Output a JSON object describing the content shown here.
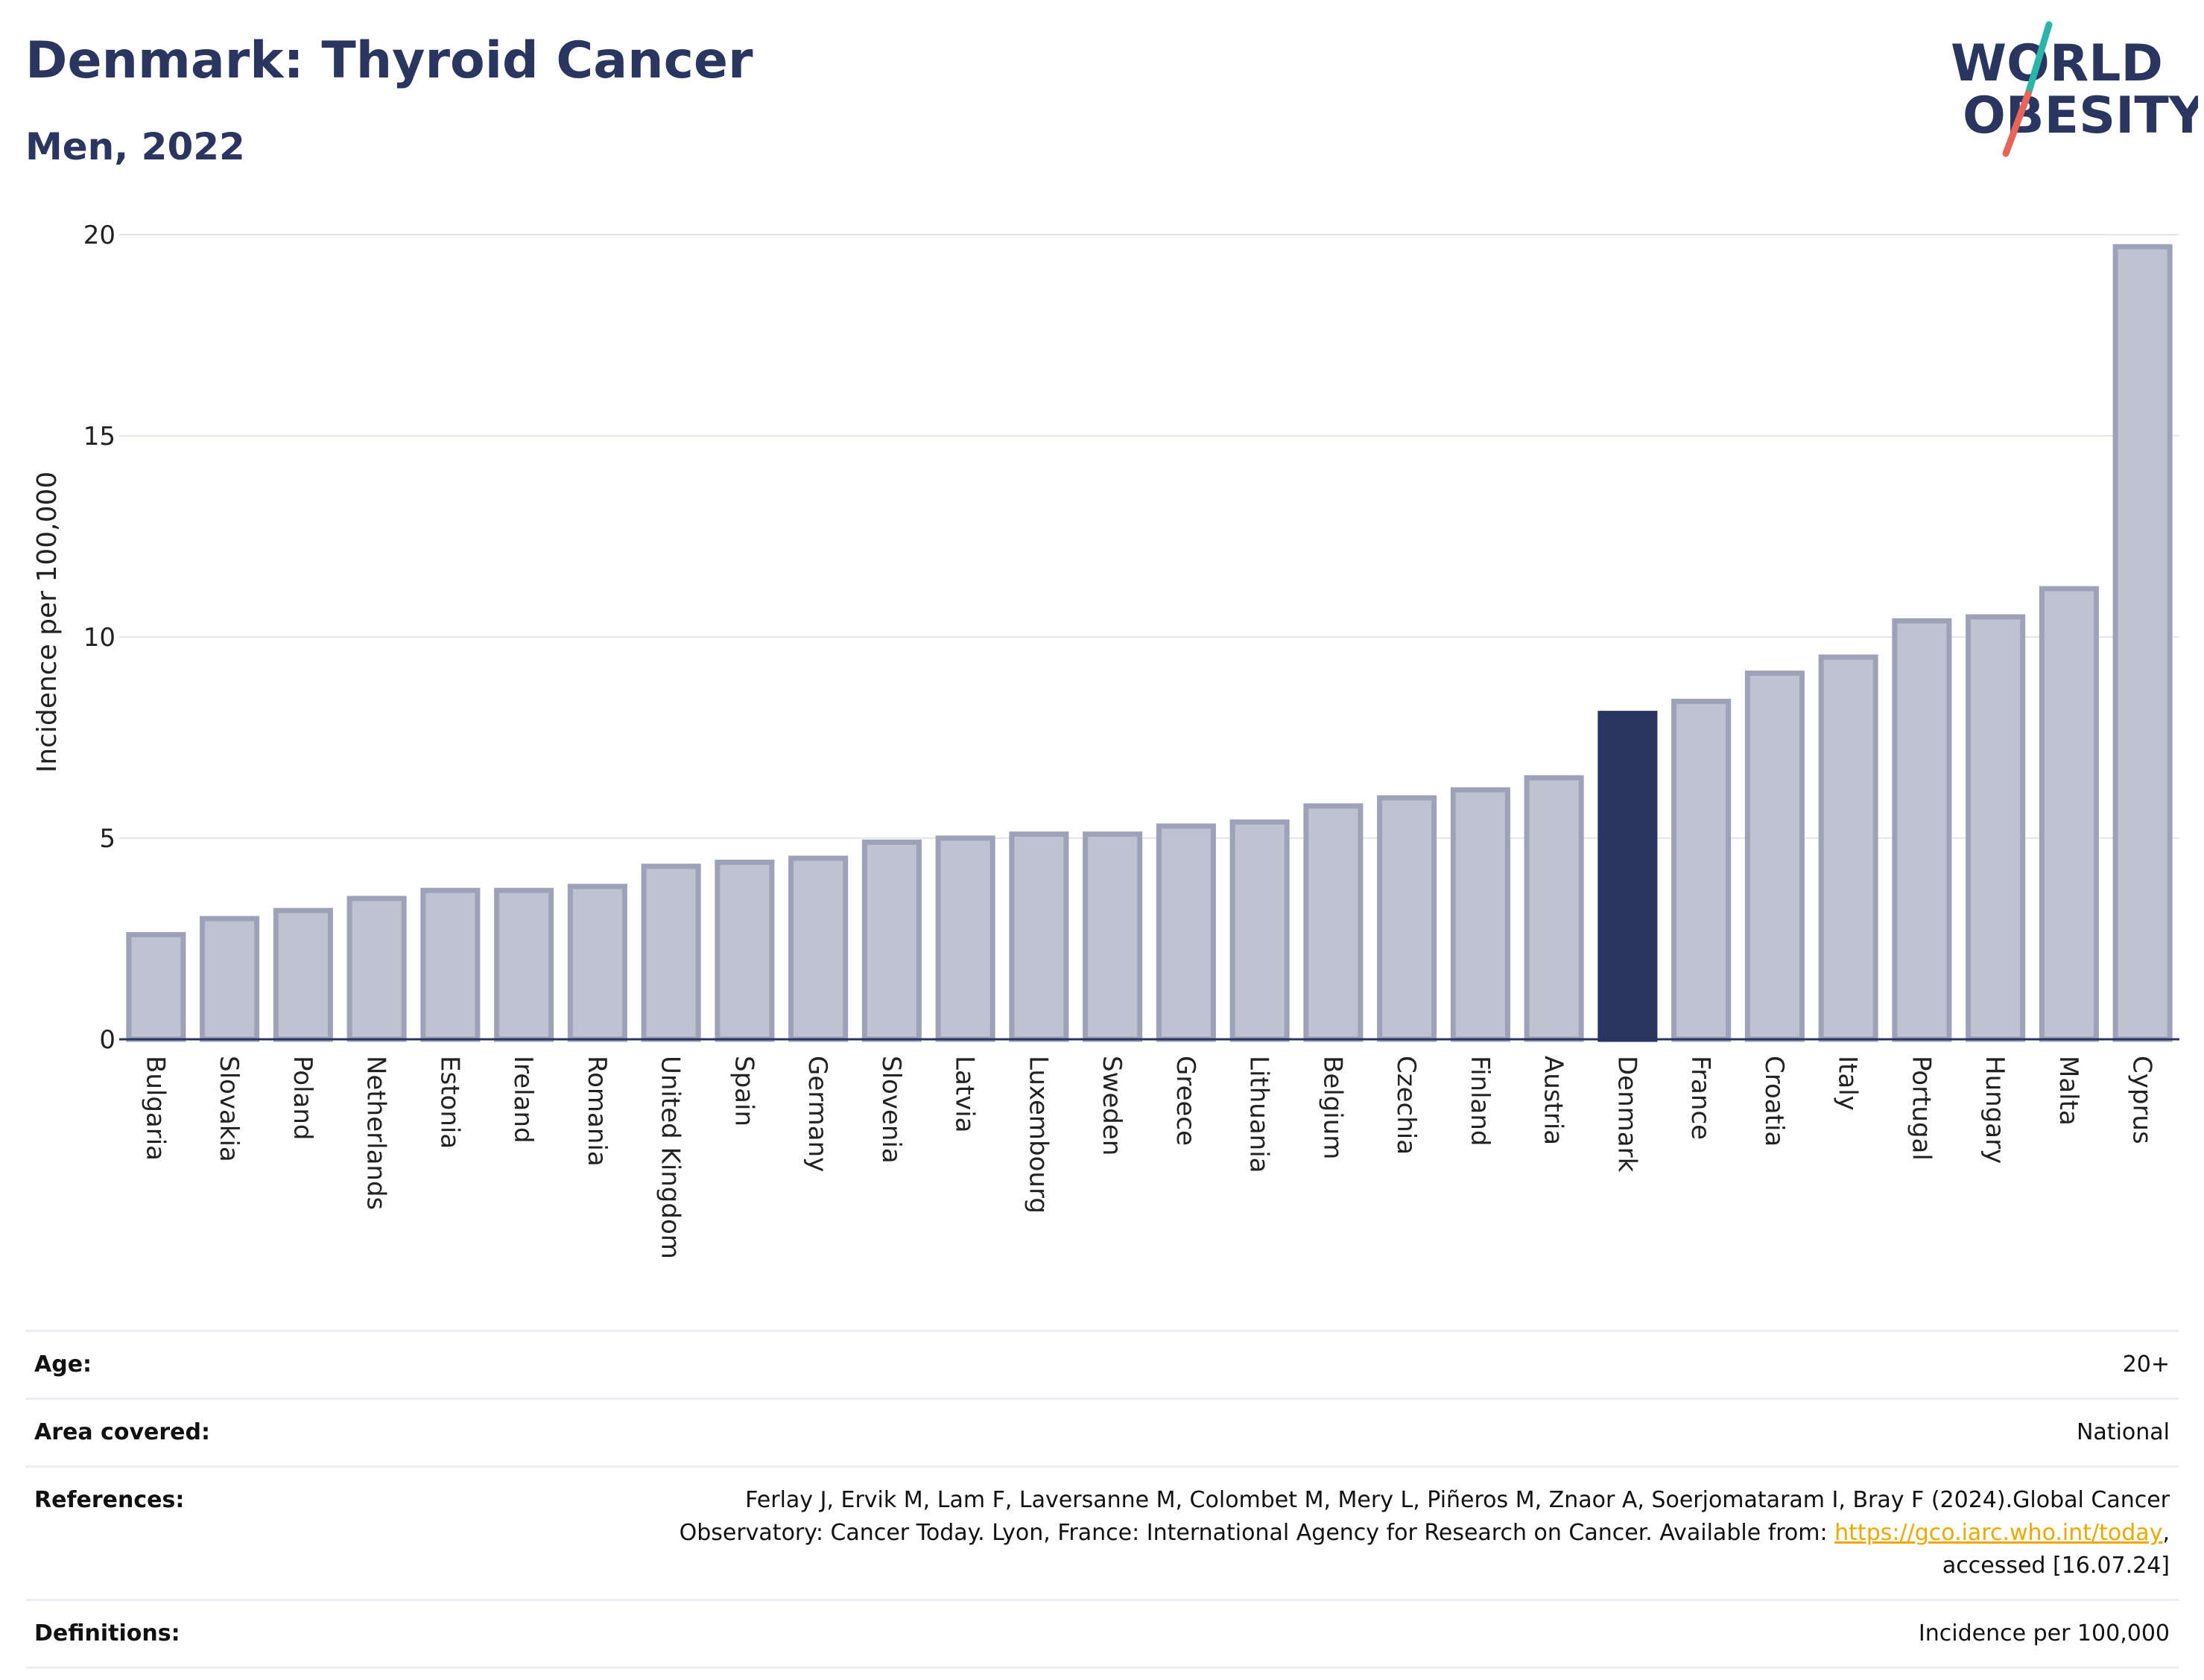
{
  "header": {
    "title": "Denmark: Thyroid Cancer",
    "subtitle": "Men, 2022",
    "logo_line1": "WORLD",
    "logo_line2": "OBESITY"
  },
  "colors": {
    "bar": "#bfc2d0",
    "bar_stroke": "#9da2b8",
    "highlight": "#2a3560",
    "text": "#2a3560",
    "link": "#f0a800",
    "logo_teal": "#2bb5a8",
    "logo_coral": "#e8645a"
  },
  "chart_data": {
    "type": "bar",
    "title": "Denmark: Thyroid Cancer",
    "subtitle": "Men, 2022",
    "ylabel": "Incidence per 100,000",
    "xlabel": "",
    "ylim": [
      0,
      20
    ],
    "yticks": [
      0,
      5,
      10,
      15,
      20
    ],
    "grid": true,
    "highlight": "Denmark",
    "categories": [
      "Bulgaria",
      "Slovakia",
      "Poland",
      "Netherlands",
      "Estonia",
      "Ireland",
      "Romania",
      "United Kingdom",
      "Spain",
      "Germany",
      "Slovenia",
      "Latvia",
      "Luxembourg",
      "Sweden",
      "Greece",
      "Lithuania",
      "Belgium",
      "Czechia",
      "Finland",
      "Austria",
      "Denmark",
      "France",
      "Croatia",
      "Italy",
      "Portugal",
      "Hungary",
      "Malta",
      "Cyprus"
    ],
    "values": [
      2.6,
      3.0,
      3.2,
      3.5,
      3.7,
      3.7,
      3.8,
      4.3,
      4.4,
      4.5,
      4.9,
      5.0,
      5.1,
      5.1,
      5.3,
      5.4,
      5.8,
      6.0,
      6.2,
      6.5,
      8.1,
      8.4,
      9.1,
      9.5,
      10.4,
      10.5,
      11.2,
      19.7
    ]
  },
  "meta": {
    "age_label": "Age:",
    "age_value": "20+",
    "area_label": "Area covered:",
    "area_value": "National",
    "references_label": "References:",
    "references_line1": "Ferlay J, Ervik M, Lam F, Laversanne M, Colombet M, Mery L, Piñeros M, Znaor A, Soerjomataram I, Bray F (2024).Global Cancer",
    "references_line2_pre": "Observatory: Cancer Today. Lyon, France: International Agency for Research on Cancer. Available from: ",
    "references_link": "https://gco.iarc.who.int/today",
    "references_line2_post": ",",
    "references_line3": "accessed [16.07.24]",
    "definitions_label": "Definitions:",
    "definitions_value": "Incidence per 100,000"
  }
}
